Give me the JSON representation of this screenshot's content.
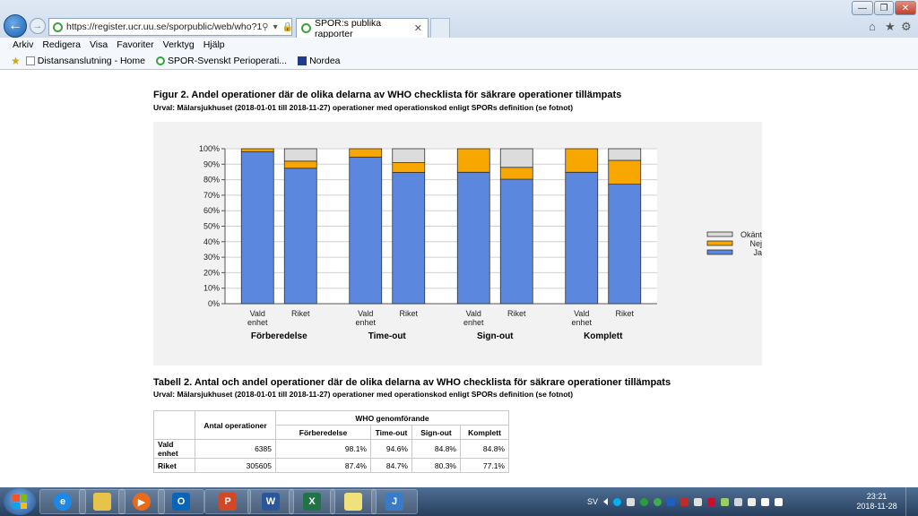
{
  "browser": {
    "address": "https://register.ucr.uu.se/sporpublic/web/who?1",
    "tab_label": "SPOR:s publika rapporter",
    "menu": [
      "Arkiv",
      "Redigera",
      "Visa",
      "Favoriter",
      "Verktyg",
      "Hjälp"
    ],
    "favorites": [
      "Distansanslutning - Home",
      "SPOR-Svenskt Perioperati...",
      "Nordea"
    ]
  },
  "figure": {
    "title": "Figur 2. Andel operationer där de olika delarna av WHO checklista för säkrare operationer tillämpats",
    "subtitle": "Urval: Mälarsjukhuset (2018-01-01 till 2018-11-27) operationer med operationskod enligt SPORs definition (se fotnot)"
  },
  "chart_data": {
    "type": "bar",
    "stacked": true,
    "groups": [
      "Förberedelse",
      "Time-out",
      "Sign-out",
      "Komplett"
    ],
    "bar_labels": [
      [
        "Vald",
        "enhet"
      ],
      [
        "Riket"
      ]
    ],
    "y_ticks": [
      "0%",
      "10%",
      "20%",
      "30%",
      "40%",
      "50%",
      "60%",
      "70%",
      "80%",
      "90%",
      "100%"
    ],
    "ylim": [
      0,
      100
    ],
    "grid": true,
    "legend_position": "right",
    "series": [
      {
        "name": "Ja",
        "color": "#5b87de",
        "values": [
          98.1,
          87.4,
          94.6,
          84.7,
          84.8,
          80.3,
          84.8,
          77.1
        ]
      },
      {
        "name": "Nej",
        "color": "#f8a600",
        "values": [
          1.9,
          4.6,
          5.4,
          6.3,
          15.2,
          7.7,
          15.2,
          15.4
        ]
      },
      {
        "name": "Okänt",
        "color": "#dcdcdc",
        "values": [
          0.0,
          8.0,
          0.0,
          9.0,
          0.0,
          12.0,
          0.0,
          7.5
        ]
      }
    ]
  },
  "table": {
    "title": "Tabell 2. Antal och andel operationer där de olika delarna av WHO checklista för säkrare operationer tillämpats",
    "subtitle": "Urval: Mälarsjukhuset (2018-01-01 till 2018-11-27) operationer med operationskod enligt SPORs definition (se fotnot)",
    "header_count": "Antal operationer",
    "header_group": "WHO genomförande",
    "columns": [
      "Förberedelse",
      "Time-out",
      "Sign-out",
      "Komplett"
    ],
    "rows": [
      {
        "label": "Vald enhet",
        "count": "6385",
        "values": [
          "98.1%",
          "94.6%",
          "84.8%",
          "84.8%"
        ]
      },
      {
        "label": "Riket",
        "count": "305605",
        "values": [
          "87.4%",
          "84.7%",
          "80.3%",
          "77.1%"
        ]
      }
    ]
  },
  "taskbar": {
    "language": "SV",
    "time": "23:21",
    "date": "2018-11-28",
    "apps": [
      "internet-explorer",
      "file-explorer",
      "media-player",
      "outlook",
      "powerpoint",
      "word",
      "excel",
      "notes",
      "nav-app"
    ]
  }
}
